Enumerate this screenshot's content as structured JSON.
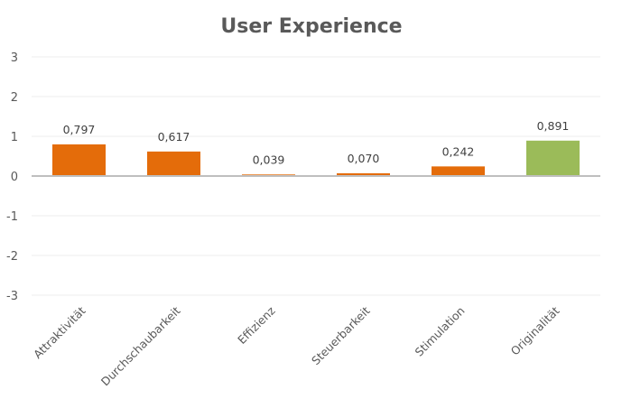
{
  "chart_data": {
    "type": "bar",
    "title": "User Experience",
    "xlabel": "",
    "ylabel": "",
    "ylim": [
      -3,
      3
    ],
    "yticks": [
      "3",
      "2",
      "1",
      "0",
      "-1",
      "-2",
      "-3"
    ],
    "grid": true,
    "categories": [
      "Attraktivität",
      "Durchschaubarkeit",
      "Effizienz",
      "Steuerbarkeit",
      "Stimulation",
      "Originalität"
    ],
    "values": [
      0.797,
      0.617,
      0.039,
      0.07,
      0.242,
      0.891
    ],
    "data_labels": [
      "0,797",
      "0,617",
      "0,039",
      "0,070",
      "0,242",
      "0,891"
    ],
    "colors": [
      "#E46C0A",
      "#E46C0A",
      "#E46C0A",
      "#E46C0A",
      "#E46C0A",
      "#9BBB59"
    ]
  }
}
